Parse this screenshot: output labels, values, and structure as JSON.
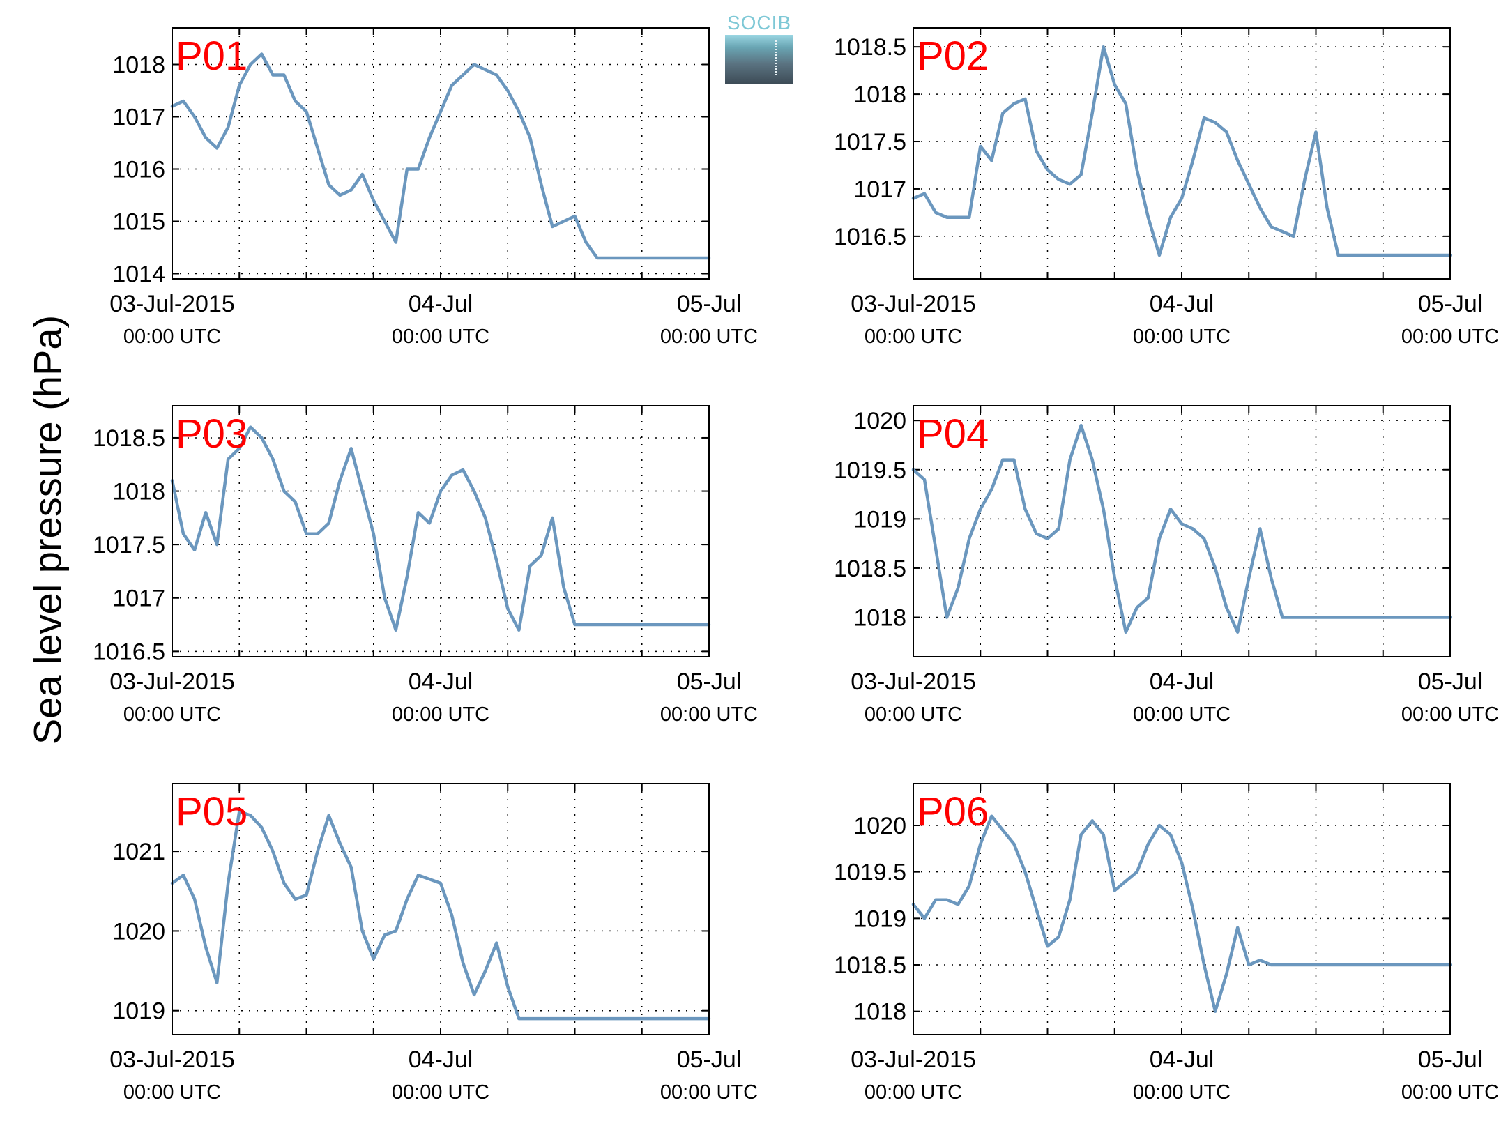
{
  "ylabel": "Sea level pressure (hPa)",
  "logo_text": "SOCIB",
  "colors": {
    "line": "#6b97be",
    "panel_label": "#ff0000",
    "grid": "#000000",
    "logo_text": "#7ec8d6"
  },
  "x_tick_labels": [
    "03-Jul-2015",
    "04-Jul",
    "05-Jul"
  ],
  "x_tick_sublabels": [
    "00:00 UTC",
    "00:00 UTC",
    "00:00 UTC"
  ],
  "chart_data": [
    {
      "type": "line",
      "title": "P01",
      "grid": true,
      "x_range_hours": [
        0,
        48
      ],
      "ylim": [
        1013.9,
        1018.7
      ],
      "yticks": [
        1014,
        1015,
        1016,
        1017,
        1018
      ],
      "ytick_labels": [
        "1014",
        "1015",
        "1016",
        "1017",
        "1018"
      ],
      "x": [
        0,
        1,
        2,
        3,
        4,
        5,
        6,
        7,
        8,
        9,
        10,
        11,
        12,
        13,
        14,
        15,
        16,
        17,
        18,
        19,
        20,
        21,
        22,
        23,
        24,
        25,
        26,
        27,
        28,
        29,
        30,
        31,
        32,
        33,
        34,
        35,
        36,
        37,
        38,
        39,
        40,
        41,
        42,
        43,
        44,
        45,
        46,
        47,
        48
      ],
      "y": [
        1017.2,
        1017.3,
        1017.0,
        1016.6,
        1016.4,
        1016.8,
        1017.6,
        1018.0,
        1018.2,
        1017.8,
        1017.8,
        1017.3,
        1017.1,
        1016.4,
        1015.7,
        1015.5,
        1015.6,
        1015.9,
        1015.4,
        1015.0,
        1014.6,
        1016.0,
        1016.0,
        1016.6,
        1017.1,
        1017.6,
        1017.8,
        1018.0,
        1017.9,
        1017.8,
        1017.5,
        1017.1,
        1016.6,
        1015.7,
        1014.9,
        1015.0,
        1015.1,
        1014.6,
        1014.3,
        1014.3,
        1014.3,
        1014.3,
        1014.3,
        1014.3,
        1014.3,
        1014.3,
        1014.3,
        1014.3,
        1014.3
      ]
    },
    {
      "type": "line",
      "title": "P02",
      "grid": true,
      "x_range_hours": [
        0,
        48
      ],
      "ylim": [
        1016.05,
        1018.7
      ],
      "yticks": [
        1016.5,
        1017,
        1017.5,
        1018,
        1018.5
      ],
      "ytick_labels": [
        "1016.5",
        "1017",
        "1017.5",
        "1018",
        "1018.5"
      ],
      "x": [
        0,
        1,
        2,
        3,
        4,
        5,
        6,
        7,
        8,
        9,
        10,
        11,
        12,
        13,
        14,
        15,
        16,
        17,
        18,
        19,
        20,
        21,
        22,
        23,
        24,
        25,
        26,
        27,
        28,
        29,
        30,
        31,
        32,
        33,
        34,
        35,
        36,
        37,
        38,
        39,
        40,
        41,
        42,
        43,
        44,
        45,
        46,
        47,
        48
      ],
      "y": [
        1016.9,
        1016.95,
        1016.75,
        1016.7,
        1016.7,
        1016.7,
        1017.45,
        1017.3,
        1017.8,
        1017.9,
        1017.95,
        1017.4,
        1017.2,
        1017.1,
        1017.05,
        1017.15,
        1017.8,
        1018.5,
        1018.1,
        1017.9,
        1017.2,
        1016.7,
        1016.3,
        1016.7,
        1016.9,
        1017.3,
        1017.75,
        1017.7,
        1017.6,
        1017.3,
        1017.05,
        1016.8,
        1016.6,
        1016.55,
        1016.5,
        1017.1,
        1017.6,
        1016.8,
        1016.3,
        1016.3,
        1016.3,
        1016.3,
        1016.3,
        1016.3,
        1016.3,
        1016.3,
        1016.3,
        1016.3,
        1016.3
      ]
    },
    {
      "type": "line",
      "title": "P03",
      "grid": true,
      "x_range_hours": [
        0,
        48
      ],
      "ylim": [
        1016.45,
        1018.8
      ],
      "yticks": [
        1016.5,
        1017,
        1017.5,
        1018,
        1018.5
      ],
      "ytick_labels": [
        "1016.5",
        "1017",
        "1017.5",
        "1018",
        "1018.5"
      ],
      "x": [
        0,
        1,
        2,
        3,
        4,
        5,
        6,
        7,
        8,
        9,
        10,
        11,
        12,
        13,
        14,
        15,
        16,
        17,
        18,
        19,
        20,
        21,
        22,
        23,
        24,
        25,
        26,
        27,
        28,
        29,
        30,
        31,
        32,
        33,
        34,
        35,
        36,
        37,
        38,
        39,
        40,
        41,
        42,
        43,
        44,
        45,
        46,
        47,
        48
      ],
      "y": [
        1018.1,
        1017.6,
        1017.45,
        1017.8,
        1017.5,
        1018.3,
        1018.4,
        1018.6,
        1018.5,
        1018.3,
        1018.0,
        1017.9,
        1017.6,
        1017.6,
        1017.7,
        1018.1,
        1018.4,
        1018.0,
        1017.6,
        1017.0,
        1016.7,
        1017.2,
        1017.8,
        1017.7,
        1018.0,
        1018.15,
        1018.2,
        1018.0,
        1017.75,
        1017.35,
        1016.9,
        1016.7,
        1017.3,
        1017.4,
        1017.75,
        1017.1,
        1016.75,
        1016.75,
        1016.75,
        1016.75,
        1016.75,
        1016.75,
        1016.75,
        1016.75,
        1016.75,
        1016.75,
        1016.75,
        1016.75,
        1016.75
      ]
    },
    {
      "type": "line",
      "title": "P04",
      "grid": true,
      "x_range_hours": [
        0,
        48
      ],
      "ylim": [
        1017.6,
        1020.15
      ],
      "yticks": [
        1018,
        1018.5,
        1019,
        1019.5,
        1020
      ],
      "ytick_labels": [
        "1018",
        "1018.5",
        "1019",
        "1019.5",
        "1020"
      ],
      "x": [
        0,
        1,
        2,
        3,
        4,
        5,
        6,
        7,
        8,
        9,
        10,
        11,
        12,
        13,
        14,
        15,
        16,
        17,
        18,
        19,
        20,
        21,
        22,
        23,
        24,
        25,
        26,
        27,
        28,
        29,
        30,
        31,
        32,
        33,
        34,
        35,
        36,
        37,
        38,
        39,
        40,
        41,
        42,
        43,
        44,
        45,
        46,
        47,
        48
      ],
      "y": [
        1019.5,
        1019.4,
        1018.7,
        1018.0,
        1018.3,
        1018.8,
        1019.1,
        1019.3,
        1019.6,
        1019.6,
        1019.1,
        1018.85,
        1018.8,
        1018.9,
        1019.6,
        1019.95,
        1019.6,
        1019.1,
        1018.4,
        1017.85,
        1018.1,
        1018.2,
        1018.8,
        1019.1,
        1018.95,
        1018.9,
        1018.8,
        1018.5,
        1018.1,
        1017.85,
        1018.4,
        1018.9,
        1018.4,
        1018.0,
        1018.0,
        1018.0,
        1018.0,
        1018.0,
        1018.0,
        1018.0,
        1018.0,
        1018.0,
        1018.0,
        1018.0,
        1018.0,
        1018.0,
        1018.0,
        1018.0,
        1018.0
      ]
    },
    {
      "type": "line",
      "title": "P05",
      "grid": true,
      "x_range_hours": [
        0,
        48
      ],
      "ylim": [
        1018.7,
        1021.85
      ],
      "yticks": [
        1019,
        1020,
        1021
      ],
      "ytick_labels": [
        "1019",
        "1020",
        "1021"
      ],
      "x": [
        0,
        1,
        2,
        3,
        4,
        5,
        6,
        7,
        8,
        9,
        10,
        11,
        12,
        13,
        14,
        15,
        16,
        17,
        18,
        19,
        20,
        21,
        22,
        23,
        24,
        25,
        26,
        27,
        28,
        29,
        30,
        31,
        32,
        33,
        34,
        35,
        36,
        37,
        38,
        39,
        40,
        41,
        42,
        43,
        44,
        45,
        46,
        47,
        48
      ],
      "y": [
        1020.6,
        1020.7,
        1020.4,
        1019.8,
        1019.35,
        1020.6,
        1021.5,
        1021.45,
        1021.3,
        1021.0,
        1020.6,
        1020.4,
        1020.45,
        1021.0,
        1021.45,
        1021.1,
        1020.8,
        1020.0,
        1019.65,
        1019.95,
        1020.0,
        1020.4,
        1020.7,
        1020.65,
        1020.6,
        1020.2,
        1019.6,
        1019.2,
        1019.5,
        1019.85,
        1019.3,
        1018.9,
        1018.9,
        1018.9,
        1018.9,
        1018.9,
        1018.9,
        1018.9,
        1018.9,
        1018.9,
        1018.9,
        1018.9,
        1018.9,
        1018.9,
        1018.9,
        1018.9,
        1018.9,
        1018.9,
        1018.9
      ]
    },
    {
      "type": "line",
      "title": "P06",
      "grid": true,
      "x_range_hours": [
        0,
        48
      ],
      "ylim": [
        1017.75,
        1020.45
      ],
      "yticks": [
        1018,
        1018.5,
        1019,
        1019.5,
        1020
      ],
      "ytick_labels": [
        "1018",
        "1018.5",
        "1019",
        "1019.5",
        "1020"
      ],
      "x": [
        0,
        1,
        2,
        3,
        4,
        5,
        6,
        7,
        8,
        9,
        10,
        11,
        12,
        13,
        14,
        15,
        16,
        17,
        18,
        19,
        20,
        21,
        22,
        23,
        24,
        25,
        26,
        27,
        28,
        29,
        30,
        31,
        32,
        33,
        34,
        35,
        36,
        37,
        38,
        39,
        40,
        41,
        42,
        43,
        44,
        45,
        46,
        47,
        48
      ],
      "y": [
        1019.15,
        1019.0,
        1019.2,
        1019.2,
        1019.15,
        1019.35,
        1019.8,
        1020.1,
        1019.95,
        1019.8,
        1019.5,
        1019.1,
        1018.7,
        1018.8,
        1019.2,
        1019.9,
        1020.05,
        1019.9,
        1019.3,
        1019.4,
        1019.5,
        1019.8,
        1020.0,
        1019.9,
        1019.6,
        1019.1,
        1018.5,
        1018.0,
        1018.4,
        1018.9,
        1018.5,
        1018.55,
        1018.5,
        1018.5,
        1018.5,
        1018.5,
        1018.5,
        1018.5,
        1018.5,
        1018.5,
        1018.5,
        1018.5,
        1018.5,
        1018.5,
        1018.5,
        1018.5,
        1018.5,
        1018.5,
        1018.5
      ]
    }
  ]
}
